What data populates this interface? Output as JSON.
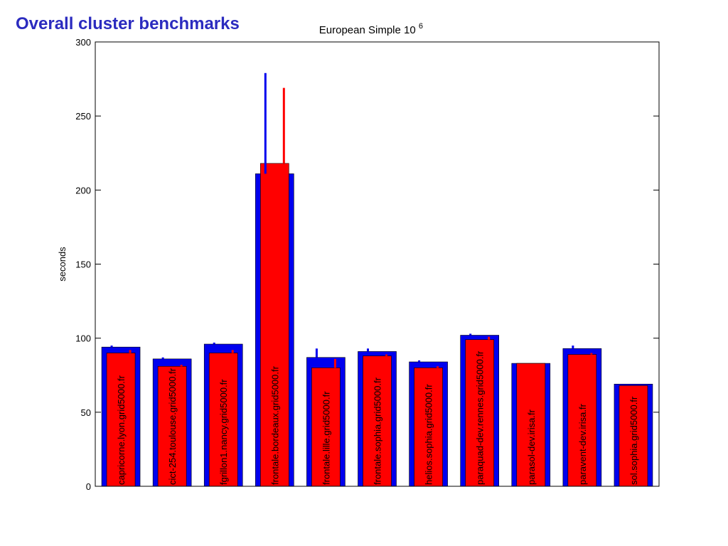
{
  "slide": {
    "title": "Overall cluster benchmarks"
  },
  "chart_data": {
    "type": "bar",
    "title": "European Simple 10",
    "title_superscript": "6",
    "xlabel": "",
    "ylabel": "seconds",
    "ylim": [
      0,
      300
    ],
    "yticks": [
      0,
      50,
      100,
      150,
      200,
      250,
      300
    ],
    "categories": [
      "capricorne.lyon.grid5000.fr",
      "cict-254.toulouse.grid5000.fr",
      "fgrillon1.nancy.grid5000.fr",
      "frontale.bordeaux.grid5000.fr",
      "frontale.lille.grid5000.fr",
      "frontale.sophia.grid5000.fr",
      "helios.sophia.grid5000.fr",
      "paraquad-dev.rennes.grid5000.fr",
      "parasol-dev.irisa.fr",
      "paravent-dev.irisa.fr",
      "sol.sophia.grid5000.fr"
    ],
    "series": [
      {
        "color": "#0000ee",
        "values": [
          94,
          86,
          96,
          211,
          87,
          91,
          84,
          102,
          83,
          93,
          69
        ],
        "error_tops": [
          95,
          87,
          97,
          279,
          93,
          93,
          85,
          103,
          83,
          95,
          69
        ]
      },
      {
        "color": "#ff0000",
        "values": [
          90,
          81,
          90,
          218,
          80,
          88,
          80,
          99,
          83,
          89,
          68
        ],
        "error_tops": [
          92,
          82,
          92,
          269,
          86,
          89,
          81,
          101,
          83,
          90,
          68
        ]
      }
    ],
    "grid": false,
    "legend": "none"
  }
}
